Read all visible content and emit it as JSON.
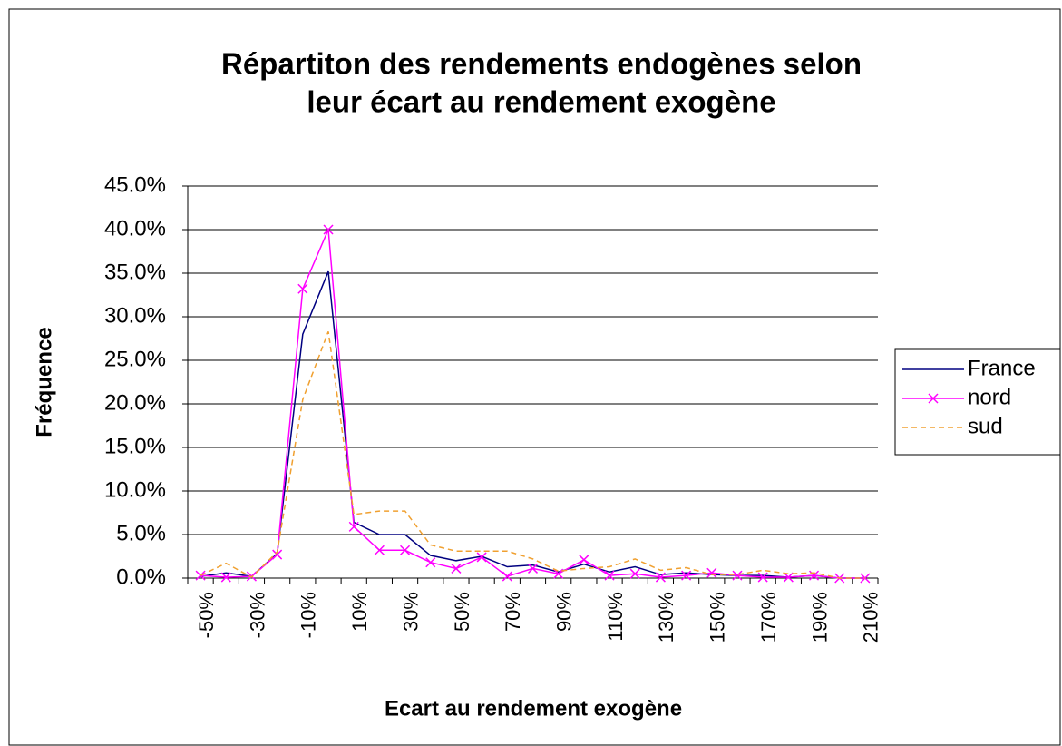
{
  "chart_data": {
    "type": "line",
    "title": [
      "Répartiton des rendements endogènes selon",
      "leur écart au rendement exogène"
    ],
    "x_label": "Ecart au rendement exogène",
    "y_label": "Fréquence",
    "categories": [
      "-50%",
      null,
      "-30%",
      null,
      "-10%",
      null,
      "10%",
      null,
      "30%",
      null,
      "50%",
      null,
      "70%",
      null,
      "90%",
      null,
      "110%",
      null,
      "130%",
      null,
      "150%",
      null,
      "170%",
      null,
      "190%",
      null,
      "210%"
    ],
    "series": [
      {
        "name": "France",
        "color": "#000080",
        "dash": false,
        "marker": false,
        "values": [
          0.2,
          0.6,
          0.2,
          2.8,
          28,
          35.2,
          6.4,
          5.0,
          5.0,
          2.6,
          2.0,
          2.5,
          1.3,
          1.5,
          0.7,
          1.6,
          0.7,
          1.3,
          0.4,
          0.6,
          0.4,
          0.3,
          0.3,
          0.1,
          0.3,
          0.0,
          0.0
        ]
      },
      {
        "name": "nord",
        "color": "#ff00ff",
        "dash": false,
        "marker": true,
        "values": [
          0.3,
          0.1,
          0.2,
          2.7,
          33.2,
          40.0,
          5.9,
          3.2,
          3.2,
          1.8,
          1.1,
          2.4,
          0.2,
          1.1,
          0.5,
          2.1,
          0.3,
          0.5,
          0.1,
          0.3,
          0.6,
          0.3,
          0.1,
          0.1,
          0.3,
          0.0,
          0.0
        ]
      },
      {
        "name": "sud",
        "color": "#f0a030",
        "dash": true,
        "marker": false,
        "values": [
          0.3,
          1.7,
          0.1,
          3.0,
          20.5,
          28.3,
          7.3,
          7.7,
          7.7,
          3.8,
          3.1,
          3.1,
          3.1,
          2.2,
          0.8,
          1.1,
          1.3,
          2.2,
          0.9,
          1.2,
          0.4,
          0.4,
          0.9,
          0.5,
          0.6,
          0.0,
          0.0
        ]
      }
    ],
    "ylim": [
      0,
      45
    ],
    "yticks": [
      {
        "value": 0,
        "label": "0.0%"
      },
      {
        "value": 5,
        "label": "5.0%"
      },
      {
        "value": 10,
        "label": "10.0%"
      },
      {
        "value": 15,
        "label": "15.0%"
      },
      {
        "value": 20,
        "label": "20.0%"
      },
      {
        "value": 25,
        "label": "25.0%"
      },
      {
        "value": 30,
        "label": "30.0%"
      },
      {
        "value": 35,
        "label": "35.0%"
      },
      {
        "value": 40,
        "label": "40.0%"
      },
      {
        "value": 45,
        "label": "45.0%"
      }
    ],
    "grid": true,
    "legend": "right"
  }
}
